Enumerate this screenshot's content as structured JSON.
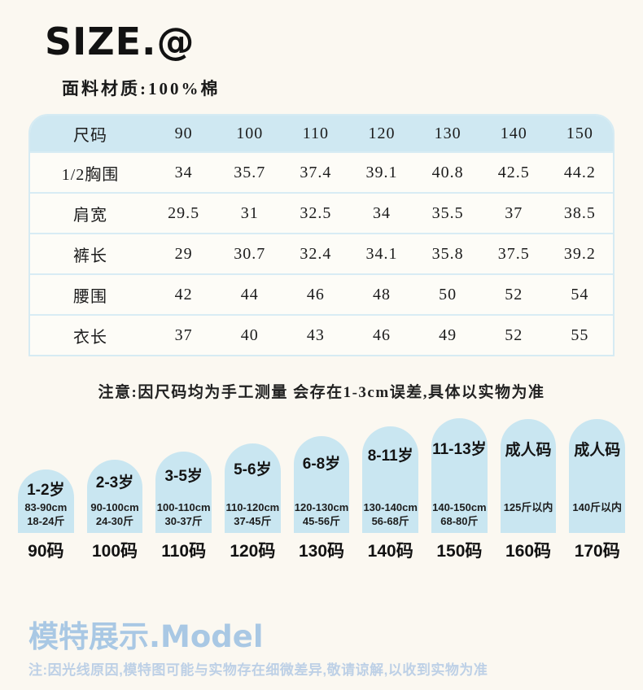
{
  "header": {
    "title": "SIZE.@",
    "material": "面料材质:100%棉"
  },
  "size_table": {
    "header_label": "尺码",
    "columns": [
      "90",
      "100",
      "110",
      "120",
      "130",
      "140",
      "150"
    ],
    "rows": [
      {
        "label": "1/2胸围",
        "values": [
          "34",
          "35.7",
          "37.4",
          "39.1",
          "40.8",
          "42.5",
          "44.2"
        ]
      },
      {
        "label": "肩宽",
        "values": [
          "29.5",
          "31",
          "32.5",
          "34",
          "35.5",
          "37",
          "38.5"
        ]
      },
      {
        "label": "裤长",
        "values": [
          "29",
          "30.7",
          "32.4",
          "34.1",
          "35.8",
          "37.5",
          "39.2"
        ]
      },
      {
        "label": "腰围",
        "values": [
          "42",
          "44",
          "46",
          "48",
          "50",
          "52",
          "54"
        ]
      },
      {
        "label": "衣长",
        "values": [
          "37",
          "40",
          "43",
          "46",
          "49",
          "52",
          "55"
        ]
      }
    ],
    "note": "注意:因尺码均为手工测量 会存在1-3cm误差,具体以实物为准"
  },
  "size_guide": {
    "items": [
      {
        "age": "1-2岁",
        "spec1": "83-90cm",
        "spec2": "18-24斤",
        "size": "90码"
      },
      {
        "age": "2-3岁",
        "spec1": "90-100cm",
        "spec2": "24-30斤",
        "size": "100码"
      },
      {
        "age": "3-5岁",
        "spec1": "100-110cm",
        "spec2": "30-37斤",
        "size": "110码"
      },
      {
        "age": "5-6岁",
        "spec1": "110-120cm",
        "spec2": "37-45斤",
        "size": "120码"
      },
      {
        "age": "6-8岁",
        "spec1": "120-130cm",
        "spec2": "45-56斤",
        "size": "130码"
      },
      {
        "age": "8-11岁",
        "spec1": "130-140cm",
        "spec2": "56-68斤",
        "size": "140码"
      },
      {
        "age": "11-13岁",
        "spec1": "140-150cm",
        "spec2": "68-80斤",
        "size": "150码"
      },
      {
        "age": "成人码",
        "spec1": "125斤以内",
        "spec2": "",
        "size": "160码"
      },
      {
        "age": "成人码",
        "spec1": "140斤以内",
        "spec2": "",
        "size": "170码"
      }
    ]
  },
  "model_section": {
    "heading": "模特展示.Model",
    "note": "注:因光线原因,模特图可能与实物存在细微差异,敬请谅解,以收到实物为准"
  },
  "colors": {
    "accent_blue": "#cfe8f2",
    "arch_blue": "#c9e6f1",
    "model_heading_blue": "#a9c8e4",
    "model_note_blue": "#bdd0e6",
    "page_background": "#fbf8f1"
  }
}
